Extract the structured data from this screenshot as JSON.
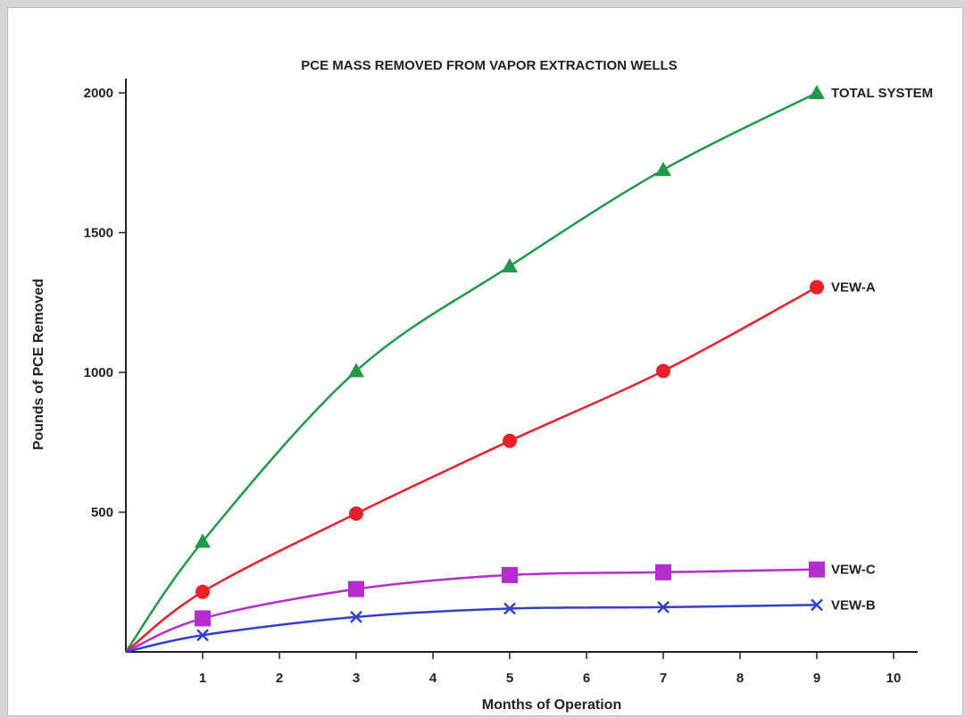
{
  "chart_data": {
    "type": "line",
    "title": "PCE MASS REMOVED FROM VAPOR EXTRACTION WELLS",
    "xlabel": "Months of Operation",
    "ylabel": "Pounds of PCE Removed",
    "xlim": [
      0,
      10.5
    ],
    "ylim": [
      0,
      2000
    ],
    "x_ticks": [
      1,
      2,
      3,
      4,
      5,
      6,
      7,
      8,
      9,
      10
    ],
    "y_ticks": [
      500,
      1000,
      1500,
      2000
    ],
    "grid": false,
    "legend": "labels at line ends",
    "series": [
      {
        "name": "TOTAL SYSTEM",
        "color": "#22994a",
        "marker": "triangle",
        "x": [
          0,
          1,
          3,
          5,
          7,
          9
        ],
        "y": [
          0,
          395,
          1005,
          1380,
          1725,
          2000
        ]
      },
      {
        "name": "VEW-A",
        "color": "#e8202a",
        "marker": "circle",
        "x": [
          0,
          1,
          3,
          5,
          7,
          9
        ],
        "y": [
          0,
          215,
          495,
          755,
          1005,
          1305
        ]
      },
      {
        "name": "VEW-C",
        "color": "#b52ccf",
        "marker": "square",
        "x": [
          0,
          1,
          3,
          5,
          7,
          9
        ],
        "y": [
          0,
          120,
          225,
          275,
          285,
          295
        ]
      },
      {
        "name": "VEW-B",
        "color": "#3341c8",
        "marker": "x",
        "x": [
          0,
          1,
          3,
          5,
          7,
          9
        ],
        "y": [
          0,
          60,
          125,
          155,
          160,
          168
        ]
      }
    ]
  }
}
